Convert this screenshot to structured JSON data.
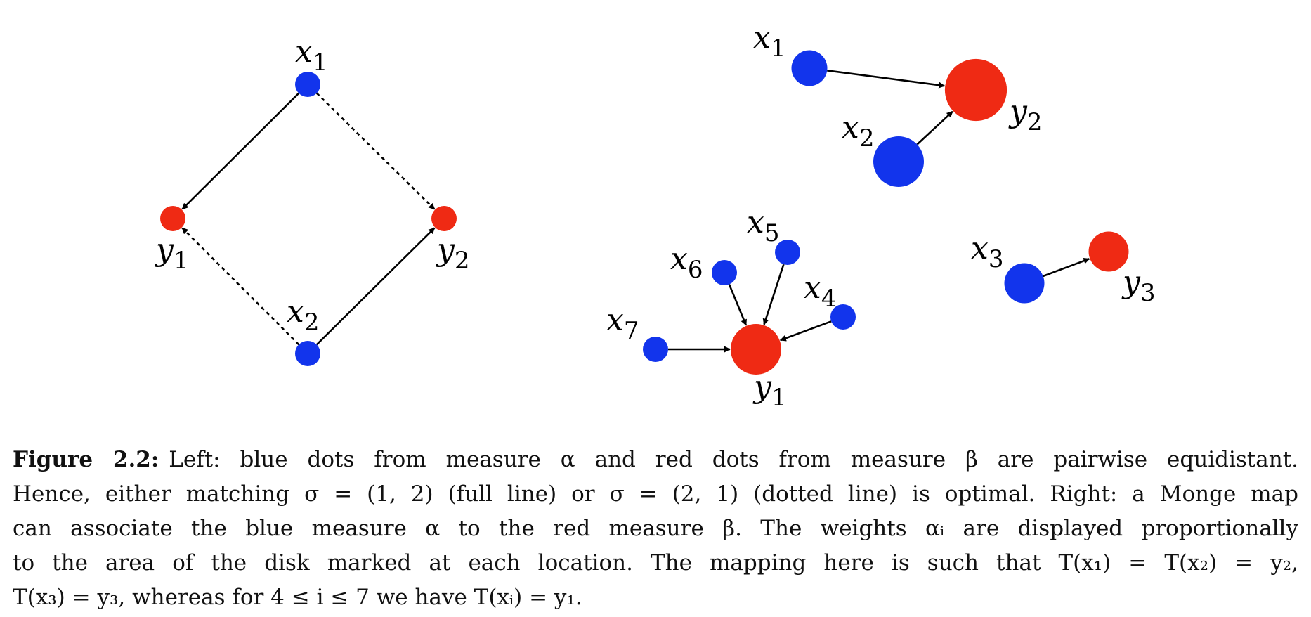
{
  "colors": {
    "blue": "#1234ec",
    "red": "#ef2a14",
    "edge": "#000000"
  },
  "left_panel": {
    "nodes": [
      {
        "id": "x1",
        "base": "x",
        "sub": "1",
        "color": "blue",
        "weight": 1
      },
      {
        "id": "x2",
        "base": "x",
        "sub": "2",
        "color": "blue",
        "weight": 1
      },
      {
        "id": "y1",
        "base": "y",
        "sub": "1",
        "color": "red",
        "weight": 1
      },
      {
        "id": "y2",
        "base": "y",
        "sub": "2",
        "color": "red",
        "weight": 1
      }
    ],
    "edges": [
      {
        "from": "x1",
        "to": "y1",
        "style": "solid"
      },
      {
        "from": "x2",
        "to": "y2",
        "style": "solid"
      },
      {
        "from": "x1",
        "to": "y2",
        "style": "dotted"
      },
      {
        "from": "x2",
        "to": "y1",
        "style": "dotted"
      }
    ]
  },
  "right_panel": {
    "nodes": [
      {
        "id": "x1",
        "base": "x",
        "sub": "1",
        "color": "blue",
        "weight": 2
      },
      {
        "id": "x2",
        "base": "x",
        "sub": "2",
        "color": "blue",
        "weight": 4
      },
      {
        "id": "y2",
        "base": "y",
        "sub": "2",
        "color": "red",
        "weight": 6
      },
      {
        "id": "x3",
        "base": "x",
        "sub": "3",
        "color": "blue",
        "weight": 2.5
      },
      {
        "id": "y3",
        "base": "y",
        "sub": "3",
        "color": "red",
        "weight": 2.5
      },
      {
        "id": "x4",
        "base": "x",
        "sub": "4",
        "color": "blue",
        "weight": 1
      },
      {
        "id": "x5",
        "base": "x",
        "sub": "5",
        "color": "blue",
        "weight": 1
      },
      {
        "id": "x6",
        "base": "x",
        "sub": "6",
        "color": "blue",
        "weight": 1
      },
      {
        "id": "x7",
        "base": "x",
        "sub": "7",
        "color": "blue",
        "weight": 1
      },
      {
        "id": "y1",
        "base": "y",
        "sub": "1",
        "color": "red",
        "weight": 4
      }
    ],
    "edges": [
      {
        "from": "x1",
        "to": "y2",
        "style": "solid"
      },
      {
        "from": "x2",
        "to": "y2",
        "style": "solid"
      },
      {
        "from": "x3",
        "to": "y3",
        "style": "solid"
      },
      {
        "from": "x4",
        "to": "y1",
        "style": "solid"
      },
      {
        "from": "x5",
        "to": "y1",
        "style": "solid"
      },
      {
        "from": "x6",
        "to": "y1",
        "style": "solid"
      },
      {
        "from": "x7",
        "to": "y1",
        "style": "solid"
      }
    ]
  },
  "caption": {
    "label": "Figure 2.2:",
    "line1": "Left: blue dots from measure α and red dots from measure β are pairwise equidistant.",
    "line2": "Hence, either matching σ = (1, 2) (full line) or σ = (2, 1) (dotted line) is optimal. Right: a Monge map",
    "line3": "can associate the blue measure α to the red measure β. The weights αᵢ are displayed proportionally",
    "line4": "to the area of the disk marked at each location. The mapping here is such that T(x₁) = T(x₂) = y₂,",
    "line5": "T(x₃) = y₃, whereas for 4 ≤ i ≤ 7 we have T(xᵢ) = y₁."
  }
}
